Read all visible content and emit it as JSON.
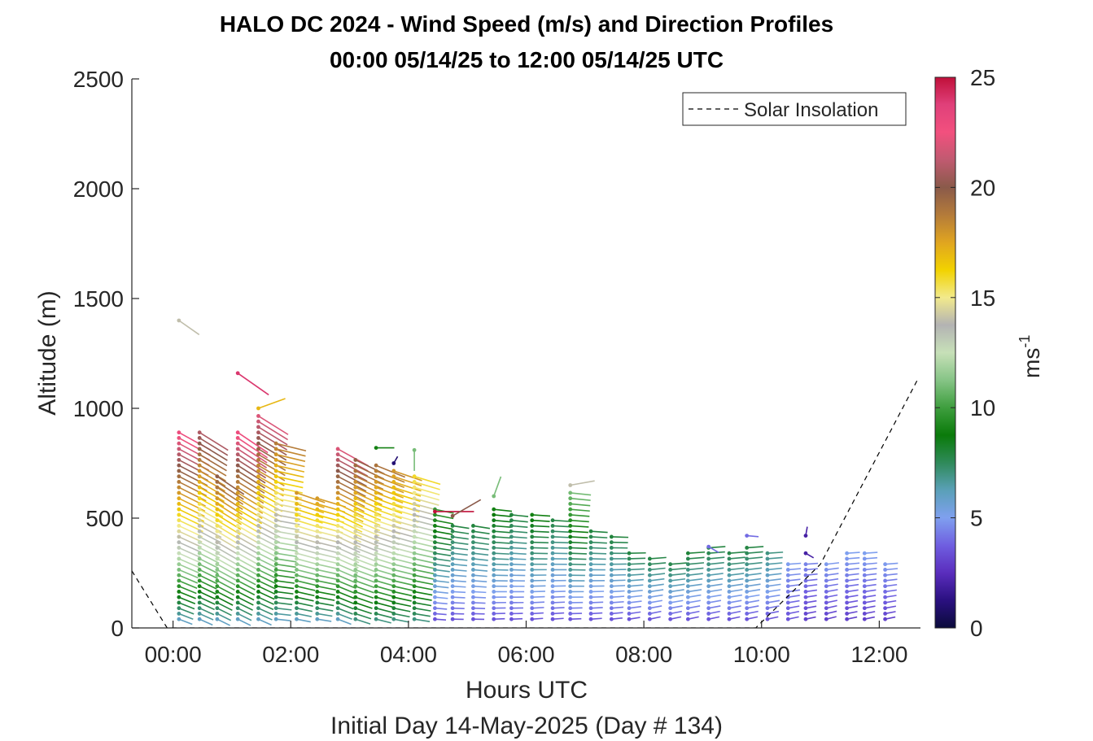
{
  "colors": {
    "axis": "#262626",
    "solar_line": "#000000",
    "colormap": [
      "#0b0b3b",
      "#2a1080",
      "#5a2dbd",
      "#6f5ee0",
      "#7fa0ef",
      "#5aa0b8",
      "#2f8a5a",
      "#0a7a0a",
      "#3e9e3e",
      "#86c486",
      "#c7e0b8",
      "#b3b3b3",
      "#f2ea8c",
      "#f2d200",
      "#e0a520",
      "#b47b3a",
      "#8a5a4a",
      "#c05a70",
      "#f2507e",
      "#e0407a",
      "#c0103a"
    ]
  },
  "chart_data": {
    "type": "wind-barb-profile",
    "title": "HALO DC 2024 - Wind Speed (m/s) and Direction Profiles",
    "subtitle": "00:00 05/14/25 to 12:00 05/14/25  UTC",
    "xlabel": "Hours UTC",
    "xlabel2": "Initial Day 14-May-2025 (Day # 134)",
    "ylabel": "Altitude (m)",
    "xlim": [
      -0.7,
      12.7
    ],
    "ylim": [
      0,
      2500
    ],
    "xticks": [
      0,
      2,
      4,
      6,
      8,
      10,
      12
    ],
    "xtick_labels": [
      "00:00",
      "02:00",
      "04:00",
      "06:00",
      "08:00",
      "10:00",
      "12:00"
    ],
    "yticks": [
      0,
      500,
      1000,
      1500,
      2000,
      2500
    ],
    "ytick_labels": [
      "0",
      "500",
      "1000",
      "1500",
      "2000",
      "2500"
    ],
    "colorbar": {
      "label": "ms",
      "label_exponent": "-1",
      "range": [
        0,
        25
      ],
      "ticks": [
        0,
        5,
        10,
        15,
        20,
        25
      ],
      "tick_labels": [
        "0",
        "5",
        "10",
        "15",
        "20",
        "25"
      ]
    },
    "legend": {
      "entries": [
        "Solar Insolation"
      ],
      "position": "top-right"
    },
    "solar_insolation": {
      "x": [
        -0.7,
        -0.1,
        0.05,
        9.9,
        11.0,
        12.65
      ],
      "y": [
        260,
        0,
        0,
        0,
        290,
        1130
      ]
    },
    "profiles": [
      {
        "x": 0.1,
        "top": 900,
        "dir": 295,
        "lo_speed": 6,
        "hi_speed": 23
      },
      {
        "x": 0.45,
        "top": 900,
        "dir": 298,
        "lo_speed": 6,
        "hi_speed": 21
      },
      {
        "x": 0.75,
        "top": 700,
        "dir": 300,
        "lo_speed": 6,
        "hi_speed": 20
      },
      {
        "x": 1.1,
        "top": 900,
        "dir": 300,
        "lo_speed": 6,
        "hi_speed": 23
      },
      {
        "x": 1.45,
        "top": 970,
        "dir": 298,
        "lo_speed": 6,
        "hi_speed": 22
      },
      {
        "x": 1.75,
        "top": 860,
        "dir": 280,
        "lo_speed": 6,
        "hi_speed": 19
      },
      {
        "x": 2.1,
        "top": 620,
        "dir": 285,
        "lo_speed": 6,
        "hi_speed": 18
      },
      {
        "x": 2.45,
        "top": 600,
        "dir": 283,
        "lo_speed": 6,
        "hi_speed": 18
      },
      {
        "x": 2.8,
        "top": 820,
        "dir": 295,
        "lo_speed": 6,
        "hi_speed": 22
      },
      {
        "x": 3.1,
        "top": 780,
        "dir": 292,
        "lo_speed": 7,
        "hi_speed": 20
      },
      {
        "x": 3.45,
        "top": 740,
        "dir": 288,
        "lo_speed": 7,
        "hi_speed": 19
      },
      {
        "x": 3.75,
        "top": 720,
        "dir": 285,
        "lo_speed": 7,
        "hi_speed": 18
      },
      {
        "x": 4.1,
        "top": 700,
        "dir": 283,
        "lo_speed": 7,
        "hi_speed": 16
      },
      {
        "x": 4.45,
        "top": 560,
        "dir": 278,
        "lo_speed": 3.5,
        "hi_speed": 10
      },
      {
        "x": 4.75,
        "top": 480,
        "dir": 275,
        "lo_speed": 3.5,
        "hi_speed": 8
      },
      {
        "x": 5.1,
        "top": 470,
        "dir": 275,
        "lo_speed": 3.5,
        "hi_speed": 8
      },
      {
        "x": 5.45,
        "top": 540,
        "dir": 272,
        "lo_speed": 3.5,
        "hi_speed": 9
      },
      {
        "x": 5.75,
        "top": 520,
        "dir": 272,
        "lo_speed": 3.5,
        "hi_speed": 8
      },
      {
        "x": 6.1,
        "top": 520,
        "dir": 270,
        "lo_speed": 3.5,
        "hi_speed": 9
      },
      {
        "x": 6.45,
        "top": 510,
        "dir": 270,
        "lo_speed": 3.5,
        "hi_speed": 8
      },
      {
        "x": 6.75,
        "top": 620,
        "dir": 272,
        "lo_speed": 3.5,
        "hi_speed": 11
      },
      {
        "x": 7.1,
        "top": 450,
        "dir": 270,
        "lo_speed": 3.5,
        "hi_speed": 8
      },
      {
        "x": 7.45,
        "top": 420,
        "dir": 268,
        "lo_speed": 3.5,
        "hi_speed": 8
      },
      {
        "x": 7.75,
        "top": 350,
        "dir": 265,
        "lo_speed": 3.5,
        "hi_speed": 8
      },
      {
        "x": 8.1,
        "top": 330,
        "dir": 262,
        "lo_speed": 3.5,
        "hi_speed": 8
      },
      {
        "x": 8.45,
        "top": 310,
        "dir": 262,
        "lo_speed": 3.5,
        "hi_speed": 8
      },
      {
        "x": 8.75,
        "top": 340,
        "dir": 262,
        "lo_speed": 3.5,
        "hi_speed": 8
      },
      {
        "x": 9.1,
        "top": 370,
        "dir": 262,
        "lo_speed": 3.5,
        "hi_speed": 8
      },
      {
        "x": 9.45,
        "top": 360,
        "dir": 262,
        "lo_speed": 3.5,
        "hi_speed": 8
      },
      {
        "x": 9.75,
        "top": 380,
        "dir": 262,
        "lo_speed": 3.5,
        "hi_speed": 8
      },
      {
        "x": 10.1,
        "top": 340,
        "dir": 262,
        "lo_speed": 3.5,
        "hi_speed": 7
      },
      {
        "x": 10.45,
        "top": 300,
        "dir": 262,
        "lo_speed": 3.5,
        "hi_speed": 5
      },
      {
        "x": 10.75,
        "top": 300,
        "dir": 262,
        "lo_speed": 3,
        "hi_speed": 4.5
      },
      {
        "x": 11.1,
        "top": 310,
        "dir": 260,
        "lo_speed": 3,
        "hi_speed": 5
      },
      {
        "x": 11.45,
        "top": 340,
        "dir": 262,
        "lo_speed": 3,
        "hi_speed": 5
      },
      {
        "x": 11.75,
        "top": 340,
        "dir": 262,
        "lo_speed": 3,
        "hi_speed": 5
      },
      {
        "x": 12.1,
        "top": 310,
        "dir": 262,
        "lo_speed": 3,
        "hi_speed": 5
      }
    ],
    "outliers": [
      {
        "x": 0.1,
        "y": 1400,
        "dir": 305,
        "speed": 14
      },
      {
        "x": 1.1,
        "y": 1160,
        "dir": 305,
        "speed": 24
      },
      {
        "x": 1.45,
        "y": 1000,
        "dir": 250,
        "speed": 17
      },
      {
        "x": 3.45,
        "y": 820,
        "dir": 270,
        "speed": 9
      },
      {
        "x": 3.75,
        "y": 750,
        "dir": 210,
        "speed": 1
      },
      {
        "x": 4.1,
        "y": 810,
        "dir": 0,
        "speed": 11
      },
      {
        "x": 4.45,
        "y": 530,
        "dir": 270,
        "speed": 25
      },
      {
        "x": 4.75,
        "y": 510,
        "dir": 240,
        "speed": 20
      },
      {
        "x": 5.45,
        "y": 600,
        "dir": 200,
        "speed": 11
      },
      {
        "x": 6.75,
        "y": 650,
        "dir": 260,
        "speed": 14
      },
      {
        "x": 9.1,
        "y": 370,
        "dir": 300,
        "speed": 4
      },
      {
        "x": 9.75,
        "y": 420,
        "dir": 275,
        "speed": 4
      },
      {
        "x": 10.75,
        "y": 420,
        "dir": 190,
        "speed": 2
      },
      {
        "x": 10.75,
        "y": 340,
        "dir": 300,
        "speed": 2
      }
    ]
  }
}
